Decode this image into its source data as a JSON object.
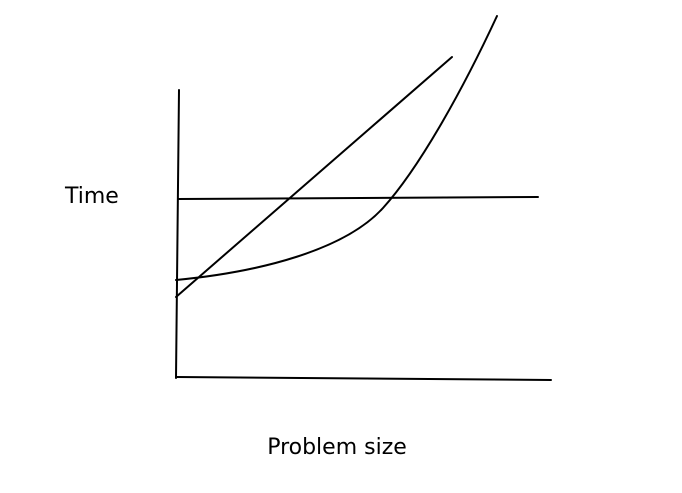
{
  "labels": {
    "y_axis": "Time",
    "x_axis": "Problem size"
  }
}
